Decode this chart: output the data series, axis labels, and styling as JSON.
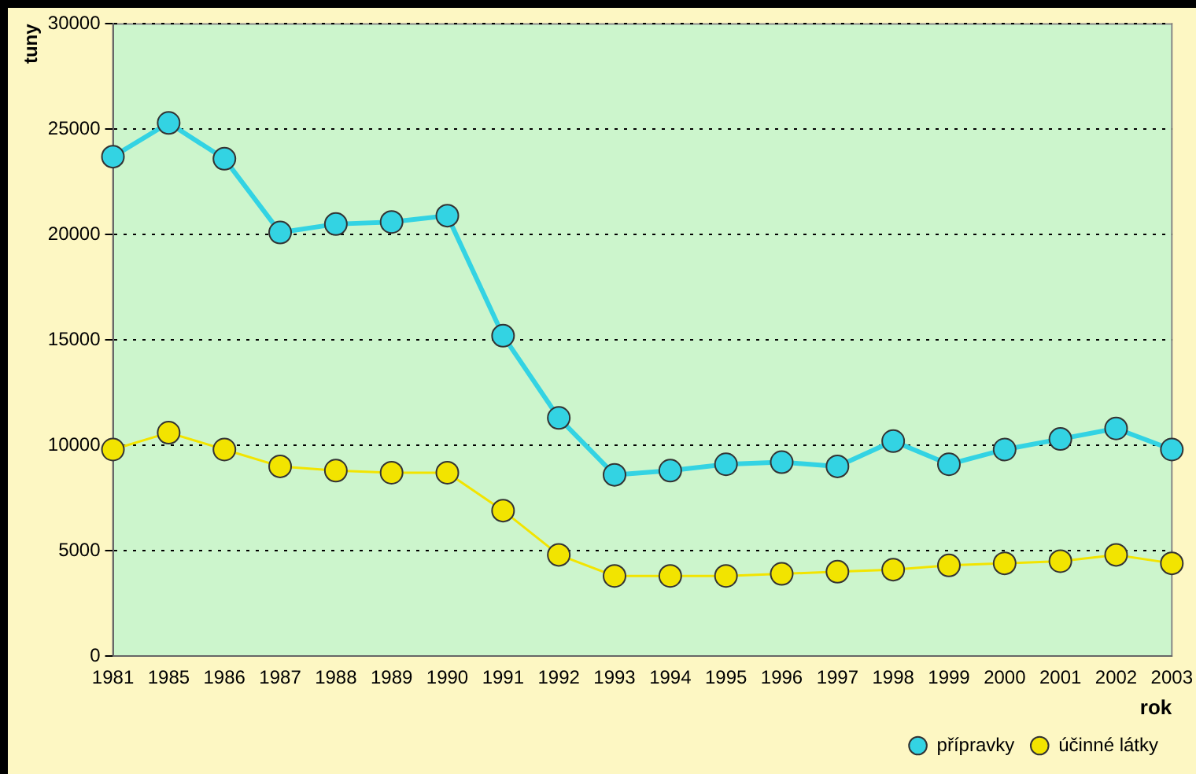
{
  "chart_data": {
    "type": "line",
    "xlabel": "rok",
    "ylabel": "tuny",
    "categories": [
      "1981",
      "1985",
      "1986",
      "1987",
      "1988",
      "1989",
      "1990",
      "1991",
      "1992",
      "1993",
      "1994",
      "1995",
      "1996",
      "1997",
      "1998",
      "1999",
      "2000",
      "2001",
      "2002",
      "2003"
    ],
    "series": [
      {
        "name": "přípravky",
        "color": "#33d3e3",
        "values": [
          23700,
          25300,
          23600,
          20100,
          20500,
          20600,
          20900,
          15200,
          11300,
          8600,
          8800,
          9100,
          9200,
          9000,
          10200,
          9100,
          9800,
          10300,
          10800,
          9800
        ]
      },
      {
        "name": "účinné látky",
        "color": "#f2e400",
        "values": [
          9800,
          10600,
          9800,
          9000,
          8800,
          8700,
          8700,
          6900,
          4800,
          3800,
          3800,
          3800,
          3900,
          4000,
          4100,
          4300,
          4400,
          4500,
          4800,
          4400
        ]
      }
    ],
    "ylim": [
      0,
      30000
    ],
    "yticks": [
      0,
      5000,
      10000,
      15000,
      20000,
      25000,
      30000
    ],
    "grid": "y",
    "legend": "bottom right",
    "marker": "circle"
  }
}
